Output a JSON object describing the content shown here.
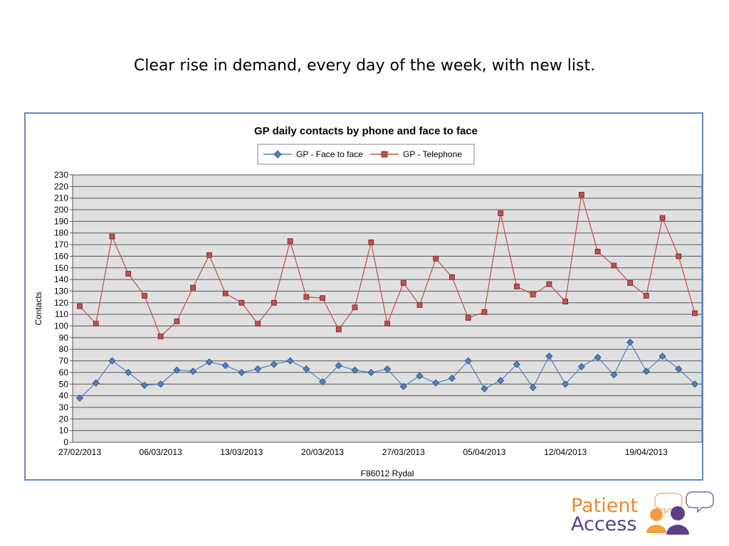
{
  "slide": {
    "title": "Clear rise in demand, every day of the week, with new list."
  },
  "logo": {
    "line1": "Patient",
    "line2": "Access"
  },
  "chart_data": {
    "type": "line",
    "title": "GP daily contacts by phone and face to face",
    "xlabel": "F86012 Rydal",
    "ylabel": "Contacts",
    "ylim": [
      0,
      230
    ],
    "ytick_step": 10,
    "grid": true,
    "legend_position": "top-center",
    "x_tick_labels": [
      "27/02/2013",
      "06/03/2013",
      "13/03/2013",
      "20/03/2013",
      "27/03/2013",
      "05/04/2013",
      "12/04/2013",
      "19/04/2013"
    ],
    "x_tick_indices": [
      0,
      5,
      10,
      15,
      20,
      25,
      30,
      35
    ],
    "series": [
      {
        "name": "GP - Face to face",
        "color": "#4f81bd",
        "marker": "diamond",
        "values": [
          38,
          51,
          70,
          60,
          49,
          50,
          62,
          61,
          69,
          66,
          60,
          63,
          67,
          70,
          63,
          52,
          66,
          62,
          60,
          63,
          48,
          57,
          51,
          55,
          70,
          46,
          53,
          67,
          47,
          74,
          50,
          65,
          73,
          58,
          86,
          61,
          74,
          63,
          50
        ]
      },
      {
        "name": "GP - Telephone",
        "color": "#c0504d",
        "marker": "square",
        "values": [
          117,
          102,
          177,
          145,
          126,
          91,
          104,
          133,
          161,
          128,
          120,
          102,
          120,
          173,
          125,
          124,
          97,
          116,
          172,
          102,
          137,
          118,
          158,
          142,
          107,
          112,
          197,
          134,
          127,
          136,
          121,
          213,
          164,
          152,
          137,
          126,
          193,
          160,
          111
        ]
      }
    ]
  }
}
